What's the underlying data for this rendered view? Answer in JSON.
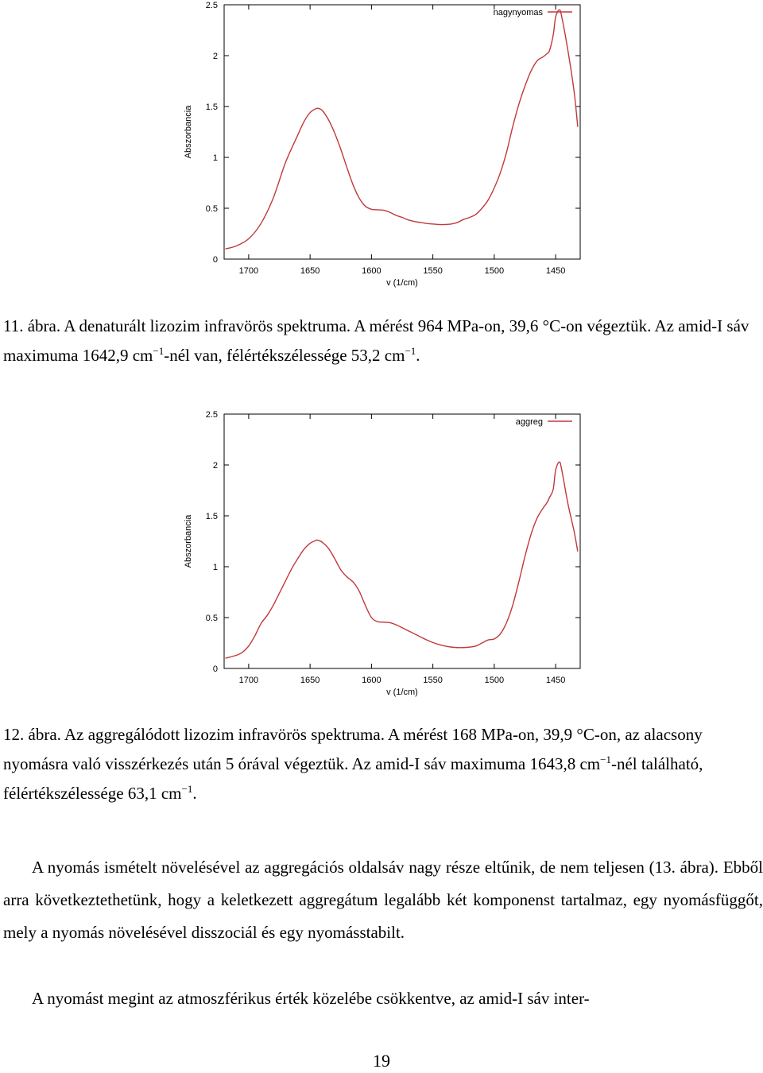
{
  "figures": [
    {
      "caption": {
        "label": "11. ábra.",
        "text": "A denaturált lizozim infravörös spektruma. A mérést 964 MPa-on, 39,6 °C-on végeztük. Az amid-I sáv maximuma 1642,9 cm",
        "sup1": "−1",
        "text2": "-nél van, félértékszélessége 53,2 cm",
        "sup2": "−1",
        "end": "."
      },
      "chart_data": {
        "type": "line",
        "xlabel": "v (1/cm)",
        "ylabel": "Abszorbancia",
        "xlim": [
          1720,
          1430
        ],
        "ylim": [
          0,
          2.5
        ],
        "xticks": [
          "1700",
          "1650",
          "1600",
          "1550",
          "1500",
          "1450"
        ],
        "yticks": [
          "0",
          "0.5",
          "1",
          "1.5",
          "2",
          "2.5"
        ],
        "legend": "top-right",
        "color": "#c0393b",
        "series": [
          {
            "name": "nagynyomas",
            "x": [
              1719,
              1710,
              1700,
              1690,
              1680,
              1670,
              1660,
              1655,
              1650,
              1645,
              1642.9,
              1640,
              1635,
              1630,
              1625,
              1620,
              1615,
              1610,
              1605,
              1600,
              1595,
              1590,
              1585,
              1580,
              1575,
              1570,
              1565,
              1560,
              1555,
              1550,
              1545,
              1540,
              1535,
              1530,
              1525,
              1520,
              1515,
              1510,
              1505,
              1500,
              1495,
              1490,
              1485,
              1480,
              1475,
              1470,
              1465,
              1460,
              1457,
              1455,
              1452,
              1450,
              1447,
              1445,
              1440,
              1435,
              1432
            ],
            "values": [
              0.1,
              0.13,
              0.2,
              0.35,
              0.6,
              0.95,
              1.22,
              1.35,
              1.44,
              1.48,
              1.48,
              1.46,
              1.37,
              1.24,
              1.08,
              0.9,
              0.73,
              0.6,
              0.52,
              0.49,
              0.485,
              0.48,
              0.46,
              0.43,
              0.41,
              0.385,
              0.37,
              0.36,
              0.35,
              0.345,
              0.34,
              0.34,
              0.345,
              0.36,
              0.39,
              0.41,
              0.44,
              0.5,
              0.58,
              0.7,
              0.85,
              1.05,
              1.3,
              1.52,
              1.7,
              1.85,
              1.95,
              1.99,
              2.02,
              2.05,
              2.2,
              2.38,
              2.45,
              2.38,
              2.05,
              1.65,
              1.3
            ]
          }
        ]
      }
    },
    {
      "caption": {
        "label": "12. ábra.",
        "text": "Az aggregálódott lizozim infravörös spektruma. A mérést 168 MPa-on, 39,9 °C-on, az alacsony nyomásra való visszérkezés után 5 órával végeztük. Az amid-I sáv maximuma 1643,8 cm",
        "sup1": "−1",
        "text2": "-nél található, félértékszélessége 63,1 cm",
        "sup2": "−1",
        "end": "."
      },
      "chart_data": {
        "type": "line",
        "xlabel": "v (1/cm)",
        "ylabel": "Abszorbancia",
        "xlim": [
          1720,
          1430
        ],
        "ylim": [
          0,
          2.5
        ],
        "xticks": [
          "1700",
          "1650",
          "1600",
          "1550",
          "1500",
          "1450"
        ],
        "yticks": [
          "0",
          "0.5",
          "1",
          "1.5",
          "2",
          "2.5"
        ],
        "legend": "top-right",
        "color": "#c0393b",
        "series": [
          {
            "name": "aggreg",
            "x": [
              1719,
              1710,
              1705,
              1700,
              1695,
              1690,
              1685,
              1680,
              1675,
              1670,
              1665,
              1660,
              1655,
              1650,
              1645,
              1643.8,
              1640,
              1635,
              1630,
              1625,
              1620,
              1615,
              1610,
              1605,
              1600,
              1595,
              1590,
              1585,
              1580,
              1575,
              1570,
              1565,
              1560,
              1555,
              1550,
              1545,
              1540,
              1535,
              1530,
              1525,
              1520,
              1515,
              1510,
              1505,
              1500,
              1495,
              1490,
              1485,
              1480,
              1475,
              1470,
              1465,
              1460,
              1457,
              1455,
              1452,
              1450,
              1447,
              1445,
              1440,
              1435,
              1432
            ],
            "values": [
              0.1,
              0.13,
              0.16,
              0.22,
              0.32,
              0.44,
              0.52,
              0.62,
              0.74,
              0.86,
              0.98,
              1.08,
              1.17,
              1.23,
              1.26,
              1.26,
              1.24,
              1.18,
              1.08,
              0.97,
              0.9,
              0.85,
              0.76,
              0.62,
              0.5,
              0.46,
              0.455,
              0.45,
              0.43,
              0.4,
              0.37,
              0.34,
              0.31,
              0.28,
              0.255,
              0.235,
              0.22,
              0.21,
              0.205,
              0.205,
              0.21,
              0.22,
              0.25,
              0.28,
              0.29,
              0.34,
              0.45,
              0.62,
              0.85,
              1.1,
              1.32,
              1.48,
              1.58,
              1.63,
              1.68,
              1.76,
              1.95,
              2.03,
              1.95,
              1.62,
              1.35,
              1.15
            ]
          }
        ]
      }
    }
  ],
  "paragraphs": [
    "A nyomás ismételt növelésével az aggregációs oldalsáv nagy része eltűnik, de nem teljesen (13. ábra). Ebből arra következtethetünk, hogy a keletkezett aggregátum legalább két komponenst tartalmaz, egy nyomásfüggőt, mely a nyomás növelésével disszociál és egy nyomásstabilt.",
    "A nyomást megint az atmoszférikus érték közelébe csökkentve, az amid-I sáv inter-"
  ],
  "page_number": "19"
}
